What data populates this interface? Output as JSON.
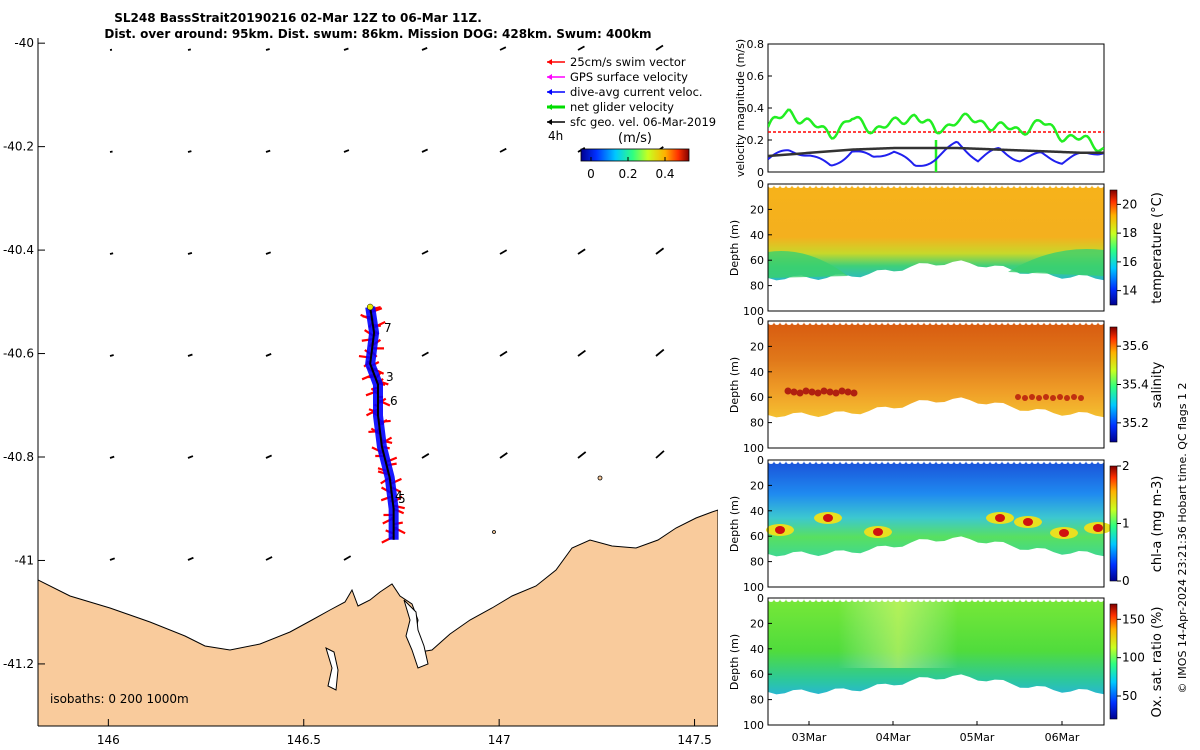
{
  "header": {
    "title_line1": "SL248 BassStrait20190216 02-Mar 12Z to 06-Mar 11Z.",
    "title_line2": "Dist. over ground: 95km. Dist. swum: 86km. Mission DOG: 428km. Swum: 400km"
  },
  "map": {
    "y_ticks": [
      "-40",
      "-40.2",
      "-40.4",
      "-40.6",
      "-40.8",
      "-41",
      "-41.2"
    ],
    "x_ticks": [
      "146",
      "146.5",
      "147",
      "147.5"
    ],
    "isobaths_label": "isobaths: 0   200  1000m",
    "legend": [
      {
        "label": "25cm/s swim vector",
        "color": "#ff0000"
      },
      {
        "label": "GPS surface velocity",
        "color": "#ff00ff"
      },
      {
        "label": "dive-avg current veloc.",
        "color": "#0000ff"
      },
      {
        "label": "net glider velocity",
        "color": "#00dd00"
      },
      {
        "label": "sfc geo. vel. 06-Mar-2019",
        "color": "#000000"
      }
    ],
    "legend_4h": "4h",
    "colorbar_unit": "(m/s)",
    "colorbar_ticks": [
      "0",
      "0.2",
      "0.4"
    ],
    "track_labels": [
      "7",
      "3",
      "6",
      "4",
      "5"
    ],
    "land_color": "#f9cb9c"
  },
  "velocity_panel": {
    "ylabel": "velocity magnitude (m/s)",
    "y_ticks": [
      "0",
      "0.2",
      "0.4",
      "0.6",
      "0.8"
    ]
  },
  "sections": [
    {
      "label": "temperature (°C)",
      "ticks": [
        "20",
        "18",
        "16",
        "14"
      ]
    },
    {
      "label": "salinity",
      "ticks": [
        "35.6",
        "35.4",
        "35.2"
      ]
    },
    {
      "label": "chl-a (mg m-3)",
      "ticks": [
        "2",
        "1",
        "0"
      ]
    },
    {
      "label": "Ox. sat. ratio (%)",
      "ticks": [
        "150",
        "100",
        "50"
      ]
    }
  ],
  "depth_label": "Depth (m)",
  "depth_ticks": [
    "0",
    "20",
    "40",
    "60",
    "80",
    "100"
  ],
  "time_ticks": [
    "03Mar",
    "04Mar",
    "05Mar",
    "06Mar"
  ],
  "credit": "© IMOS 14-Apr-2024 23:21:36 Hobart time. QC flags 1  2",
  "chart_data": {
    "type": "map+line+heatmap",
    "map_xlim": [
      145.82,
      147.56
    ],
    "map_ylim": [
      -41.32,
      -39.99
    ],
    "track_lon_lat": [
      [
        146.67,
        -40.51
      ],
      [
        146.68,
        -40.56
      ],
      [
        146.67,
        -40.62
      ],
      [
        146.69,
        -40.66
      ],
      [
        146.69,
        -40.72
      ],
      [
        146.7,
        -40.78
      ],
      [
        146.72,
        -40.84
      ],
      [
        146.73,
        -40.9
      ],
      [
        146.73,
        -40.96
      ]
    ],
    "velocity": {
      "ylim": [
        0,
        0.8
      ],
      "swim_ref": 0.25,
      "days": [
        0,
        0.25,
        0.5,
        0.75,
        1.0,
        1.25,
        1.5,
        1.75,
        2.0,
        2.25,
        2.5,
        2.75,
        3.0,
        3.25,
        3.5,
        3.75,
        4.0
      ],
      "net_glider": [
        0.28,
        0.38,
        0.3,
        0.24,
        0.33,
        0.27,
        0.3,
        0.36,
        0.25,
        0.33,
        0.32,
        0.28,
        0.26,
        0.31,
        0.23,
        0.2,
        0.15
      ],
      "dive_avg": [
        0.08,
        0.12,
        0.1,
        0.05,
        0.14,
        0.08,
        0.12,
        0.04,
        0.1,
        0.18,
        0.06,
        0.14,
        0.09,
        0.12,
        0.05,
        0.1,
        0.14
      ],
      "sfc_geo": [
        0.1,
        0.11,
        0.12,
        0.13,
        0.14,
        0.145,
        0.15,
        0.15,
        0.15,
        0.15,
        0.145,
        0.14,
        0.135,
        0.13,
        0.125,
        0.12,
        0.12
      ]
    },
    "sections": [
      {
        "name": "temperature",
        "clim": [
          13,
          21
        ]
      },
      {
        "name": "salinity",
        "clim": [
          35.1,
          35.7
        ]
      },
      {
        "name": "chl-a",
        "clim": [
          0,
          2
        ]
      },
      {
        "name": "oxygen saturation",
        "clim": [
          20,
          170
        ]
      }
    ],
    "depth_lim": [
      0,
      100
    ],
    "time_range": "02-Mar 12Z to 06-Mar 11Z"
  }
}
